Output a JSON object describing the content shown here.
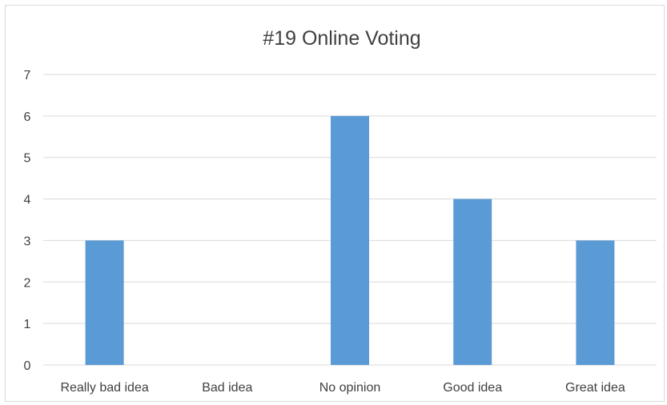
{
  "chart_data": {
    "type": "bar",
    "title": "#19 Online Voting",
    "xlabel": "",
    "ylabel": "",
    "categories": [
      "Really bad idea",
      "Bad idea",
      "No opinion",
      "Good idea",
      "Great idea"
    ],
    "values": [
      3,
      0,
      6,
      4,
      3
    ],
    "ylim": [
      0,
      7
    ],
    "yticks": [
      0,
      1,
      2,
      3,
      4,
      5,
      6,
      7
    ],
    "grid": true,
    "legend": "none",
    "colors": {
      "bar": "#5b9bd5",
      "grid": "#d9d9d9",
      "text": "#404040"
    }
  }
}
